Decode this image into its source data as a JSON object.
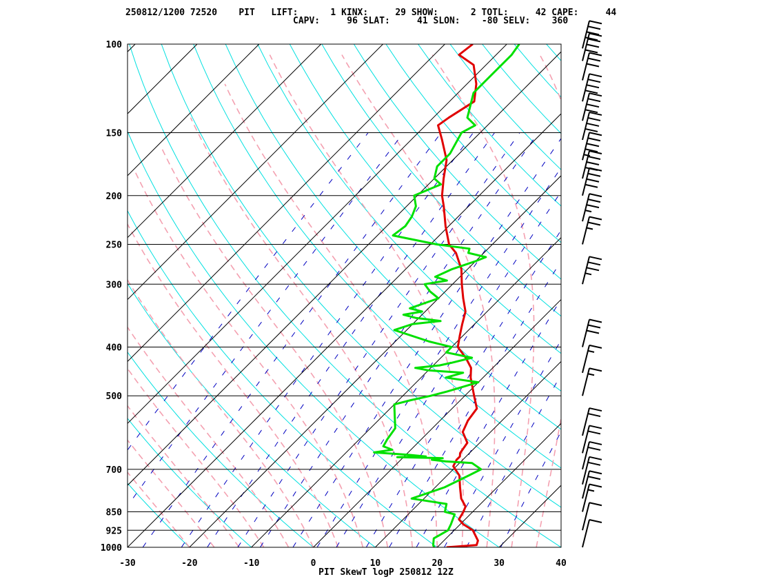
{
  "header": {
    "line1": "250812/1200 72520    PIT   LIFT:      1 KINX:     29 SHOW:      2 TOTL:     42 CAPE:     44",
    "line2": "CAPV:     96 SLAT:     41 SLON:    -80 SELV:    360"
  },
  "footer": {
    "caption": "PIT SkewT logP 250812 12Z"
  },
  "colors": {
    "temperature": "#e00000",
    "dewpoint": "#00e000",
    "isotherm": "#000000",
    "isobar": "#000000",
    "dry_adiabat": "#00e0e0",
    "moist_adiabat": "#f4a0b0",
    "mixing_ratio": "#0000c0",
    "wind_barb": "#000000"
  },
  "chart_data": {
    "type": "line",
    "title": "PIT SkewT logP 250812 12Z",
    "xlabel": "",
    "ylabel": "",
    "xlim": [
      -30,
      40
    ],
    "ylim": [
      1000,
      100
    ],
    "y_scale": "log-reversed",
    "x_ticks": [
      -30,
      -20,
      -10,
      0,
      10,
      20,
      30,
      40
    ],
    "y_ticks": [
      100,
      150,
      200,
      250,
      300,
      400,
      500,
      700,
      850,
      925,
      1000
    ],
    "grid": true,
    "series": [
      {
        "key": "temperature",
        "points": [
          [
            1000,
            21.5
          ],
          [
            990,
            26.0
          ],
          [
            970,
            25.5
          ],
          [
            925,
            23.0
          ],
          [
            900,
            20.5
          ],
          [
            880,
            19.0
          ],
          [
            850,
            18.5
          ],
          [
            830,
            18.0
          ],
          [
            800,
            16.0
          ],
          [
            760,
            14.0
          ],
          [
            720,
            12.0
          ],
          [
            690,
            9.5
          ],
          [
            670,
            9.0
          ],
          [
            660,
            9.0
          ],
          [
            650,
            8.5
          ],
          [
            620,
            8.0
          ],
          [
            590,
            5.5
          ],
          [
            560,
            4.5
          ],
          [
            530,
            4.0
          ],
          [
            500,
            1.5
          ],
          [
            460,
            -2.0
          ],
          [
            440,
            -3.5
          ],
          [
            420,
            -6.0
          ],
          [
            400,
            -9.0
          ],
          [
            380,
            -10.5
          ],
          [
            360,
            -12.0
          ],
          [
            340,
            -13.5
          ],
          [
            320,
            -16.0
          ],
          [
            300,
            -18.5
          ],
          [
            280,
            -21.0
          ],
          [
            260,
            -24.5
          ],
          [
            250,
            -27.0
          ],
          [
            230,
            -30.5
          ],
          [
            210,
            -34.0
          ],
          [
            200,
            -36.0
          ],
          [
            185,
            -38.5
          ],
          [
            170,
            -41.0
          ],
          [
            155,
            -45.0
          ],
          [
            145,
            -48.0
          ],
          [
            140,
            -47.5
          ],
          [
            130,
            -46.0
          ],
          [
            120,
            -48.5
          ],
          [
            110,
            -52.0
          ],
          [
            105,
            -56.0
          ],
          [
            100,
            -55.5
          ]
        ]
      },
      {
        "key": "dewpoint",
        "points": [
          [
            1000,
            19.5
          ],
          [
            990,
            19.0
          ],
          [
            960,
            18.0
          ],
          [
            925,
            19.0
          ],
          [
            900,
            18.5
          ],
          [
            860,
            17.5
          ],
          [
            850,
            15.5
          ],
          [
            820,
            14.5
          ],
          [
            800,
            8.0
          ],
          [
            760,
            11.5
          ],
          [
            720,
            13.5
          ],
          [
            700,
            14.5
          ],
          [
            680,
            12.0
          ],
          [
            675,
            7.5
          ],
          [
            670,
            5.0
          ],
          [
            665,
            6.5
          ],
          [
            662,
            -1.0
          ],
          [
            660,
            3.5
          ],
          [
            655,
            0.5
          ],
          [
            652,
            -2.0
          ],
          [
            648,
            -5.5
          ],
          [
            640,
            -3.0
          ],
          [
            630,
            -5.0
          ],
          [
            610,
            -5.5
          ],
          [
            580,
            -6.0
          ],
          [
            520,
            -10.0
          ],
          [
            510,
            -8.0
          ],
          [
            500,
            -5.5
          ],
          [
            490,
            -3.5
          ],
          [
            470,
            0.0
          ],
          [
            460,
            -6.0
          ],
          [
            455,
            -5.0
          ],
          [
            450,
            -4.0
          ],
          [
            445,
            -10.0
          ],
          [
            440,
            -12.5
          ],
          [
            435,
            -9.0
          ],
          [
            430,
            -7.5
          ],
          [
            420,
            -5.0
          ],
          [
            410,
            -10.0
          ],
          [
            400,
            -10.0
          ],
          [
            390,
            -14.5
          ],
          [
            370,
            -22.0
          ],
          [
            360,
            -20.0
          ],
          [
            355,
            -16.0
          ],
          [
            350,
            -20.5
          ],
          [
            345,
            -23.0
          ],
          [
            340,
            -20.5
          ],
          [
            335,
            -23.0
          ],
          [
            320,
            -20.0
          ],
          [
            310,
            -22.5
          ],
          [
            300,
            -24.5
          ],
          [
            295,
            -21.5
          ],
          [
            290,
            -24.0
          ],
          [
            280,
            -22.5
          ],
          [
            270,
            -20.0
          ],
          [
            265,
            -19.0
          ],
          [
            260,
            -22.5
          ],
          [
            255,
            -23.0
          ],
          [
            250,
            -29.0
          ],
          [
            240,
            -37.5
          ],
          [
            230,
            -37.0
          ],
          [
            220,
            -37.5
          ],
          [
            210,
            -38.5
          ],
          [
            200,
            -40.5
          ],
          [
            190,
            -38.0
          ],
          [
            185,
            -40.0
          ],
          [
            175,
            -41.5
          ],
          [
            165,
            -41.5
          ],
          [
            150,
            -43.0
          ],
          [
            145,
            -42.0
          ],
          [
            140,
            -44.5
          ],
          [
            125,
            -47.5
          ],
          [
            115,
            -47.5
          ],
          [
            105,
            -47.5
          ],
          [
            100,
            -48.0
          ]
        ]
      }
    ],
    "wind_barbs": [
      {
        "pressure": 1000,
        "knots": 10
      },
      {
        "pressure": 925,
        "knots": 10
      },
      {
        "pressure": 850,
        "knots": 15
      },
      {
        "pressure": 800,
        "knots": 20
      },
      {
        "pressure": 750,
        "knots": 20
      },
      {
        "pressure": 700,
        "knots": 20
      },
      {
        "pressure": 650,
        "knots": 20
      },
      {
        "pressure": 600,
        "knots": 20
      },
      {
        "pressure": 500,
        "knots": 15
      },
      {
        "pressure": 450,
        "knots": 15
      },
      {
        "pressure": 400,
        "knots": 30
      },
      {
        "pressure": 300,
        "knots": 35
      },
      {
        "pressure": 250,
        "knots": 25
      },
      {
        "pressure": 225,
        "knots": 35
      },
      {
        "pressure": 200,
        "knots": 40
      },
      {
        "pressure": 185,
        "knots": 40
      },
      {
        "pressure": 170,
        "knots": 45
      },
      {
        "pressure": 155,
        "knots": 40
      },
      {
        "pressure": 142,
        "knots": 40
      },
      {
        "pressure": 130,
        "knots": 40
      },
      {
        "pressure": 118,
        "knots": 30
      },
      {
        "pressure": 108,
        "knots": 40
      },
      {
        "pressure": 102,
        "knots": 40
      }
    ]
  }
}
